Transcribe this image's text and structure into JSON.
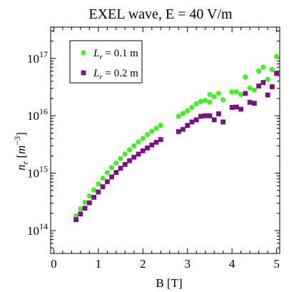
{
  "chart_data": {
    "type": "scatter",
    "title": "EXEL wave, E = 40 V/m",
    "xlabel": "B [T]",
    "ylabel": {
      "base": "n",
      "subscript": "r",
      "unit_base": "m",
      "unit_exp": "−3"
    },
    "x_scale": "linear",
    "y_scale": "log",
    "xlim": [
      -0.07,
      5.07
    ],
    "ylim": [
      40000000000000.0,
      3.5e+17
    ],
    "x_ticks": [
      0,
      1,
      2,
      3,
      4,
      5
    ],
    "y_ticks": [
      {
        "value": 100000000000000.0,
        "base": "10",
        "exp": "14"
      },
      {
        "value": 1000000000000000.0,
        "base": "10",
        "exp": "15"
      },
      {
        "value": 1e+16,
        "base": "10",
        "exp": "16"
      },
      {
        "value": 1e+17,
        "base": "10",
        "exp": "17"
      }
    ],
    "grid": false,
    "legend_position": "top-left",
    "series": [
      {
        "name": {
          "base": "L",
          "subscript": "r",
          "suffix": " = 0.1 m"
        },
        "marker": "circle",
        "color": "#44ee22",
        "points": [
          [
            0.5,
            180000000000000.0
          ],
          [
            0.6,
            240000000000000.0
          ],
          [
            0.7,
            310000000000000.0
          ],
          [
            0.8,
            400000000000000.0
          ],
          [
            0.9,
            510000000000000.0
          ],
          [
            1.0,
            650000000000000.0
          ],
          [
            1.1,
            820000000000000.0
          ],
          [
            1.2,
            1020000000000000.0
          ],
          [
            1.3,
            1250000000000000.0
          ],
          [
            1.4,
            1500000000000000.0
          ],
          [
            1.5,
            1800000000000000.0
          ],
          [
            1.6,
            2150000000000000.0
          ],
          [
            1.7,
            2550000000000000.0
          ],
          [
            1.8,
            3000000000000000.0
          ],
          [
            1.9,
            3500000000000000.0
          ],
          [
            2.0,
            4050000000000000.0
          ],
          [
            2.1,
            4700000000000000.0
          ],
          [
            2.2,
            5350000000000000.0
          ],
          [
            2.3,
            6050000000000000.0
          ],
          [
            2.4,
            6800000000000000.0
          ],
          [
            2.8,
            9800000000000000.0
          ],
          [
            2.9,
            1.1e+16
          ],
          [
            3.0,
            1.22e+16
          ],
          [
            3.1,
            1.4e+16
          ],
          [
            3.2,
            1.62e+16
          ],
          [
            3.3,
            1.78e+16
          ],
          [
            3.4,
            1.85e+16
          ],
          [
            3.5,
            1.72e+16
          ],
          [
            3.5,
            2.35e+16
          ],
          [
            3.6,
            2.15e+16
          ],
          [
            3.7,
            2.45e+16
          ],
          [
            3.8,
            1.9e+16
          ],
          [
            4.0,
            2.6e+16
          ],
          [
            4.1,
            2.6e+16
          ],
          [
            4.2,
            2.35e+16
          ],
          [
            4.3,
            4.7e+16
          ],
          [
            4.4,
            3.05e+16
          ],
          [
            4.5,
            2.8e+16
          ],
          [
            4.6,
            6e+16
          ],
          [
            4.7,
            7e+16
          ],
          [
            4.8,
            4.3e+16
          ],
          [
            4.9,
            6.4e+16
          ],
          [
            5.0,
            1.07e+17
          ]
        ]
      },
      {
        "name": {
          "base": "L",
          "subscript": "r",
          "suffix": " = 0.2 m"
        },
        "marker": "square",
        "color": "#7a0f86",
        "points": [
          [
            0.5,
            155000000000000.0
          ],
          [
            0.6,
            195000000000000.0
          ],
          [
            0.7,
            245000000000000.0
          ],
          [
            0.8,
            305000000000000.0
          ],
          [
            0.9,
            380000000000000.0
          ],
          [
            1.0,
            470000000000000.0
          ],
          [
            1.1,
            580000000000000.0
          ],
          [
            1.2,
            710000000000000.0
          ],
          [
            1.3,
            860000000000000.0
          ],
          [
            1.4,
            1030000000000000.0
          ],
          [
            1.5,
            1220000000000000.0
          ],
          [
            1.6,
            1420000000000000.0
          ],
          [
            1.7,
            1650000000000000.0
          ],
          [
            1.8,
            1900000000000000.0
          ],
          [
            1.9,
            2150000000000000.0
          ],
          [
            2.0,
            2450000000000000.0
          ],
          [
            2.1,
            2750000000000000.0
          ],
          [
            2.2,
            3100000000000000.0
          ],
          [
            2.3,
            3450000000000000.0
          ],
          [
            2.4,
            3850000000000000.0
          ],
          [
            2.8,
            5300000000000000.0
          ],
          [
            2.9,
            5800000000000000.0
          ],
          [
            3.0,
            6800000000000000.0
          ],
          [
            3.1,
            7800000000000000.0
          ],
          [
            3.2,
            8500000000000000.0
          ],
          [
            3.3,
            9800000000000000.0
          ],
          [
            3.4,
            1e+16
          ],
          [
            3.5,
            1e+16
          ],
          [
            3.6,
            8500000000000000.0
          ],
          [
            3.7,
            1.08e+16
          ],
          [
            3.8,
            7800000000000000.0
          ],
          [
            4.0,
            1.4e+16
          ],
          [
            4.1,
            1.42e+16
          ],
          [
            4.2,
            1.3e+16
          ],
          [
            4.3,
            2.45e+16
          ],
          [
            4.4,
            1.72e+16
          ],
          [
            4.5,
            1.65e+16
          ],
          [
            4.6,
            3.3e+16
          ],
          [
            4.7,
            3.8e+16
          ],
          [
            4.8,
            2.3e+16
          ],
          [
            4.9,
            3.2e+16
          ],
          [
            5.0,
            5.5e+16
          ]
        ]
      }
    ]
  }
}
